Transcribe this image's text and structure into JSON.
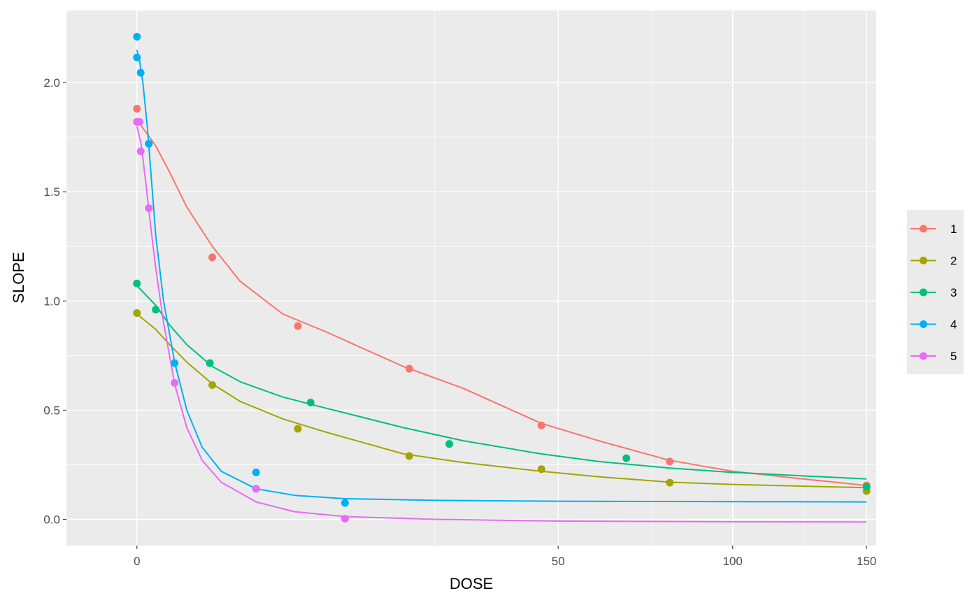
{
  "chart_data": {
    "type": "scatter",
    "title": "",
    "xlabel": "DOSE",
    "ylabel": "SLOPE",
    "x_scale": "sqrt",
    "xlim": [
      -1.4,
      154
    ],
    "ylim": [
      -0.12,
      2.33
    ],
    "x_ticks": [
      0,
      50,
      100,
      150
    ],
    "y_ticks": [
      0.0,
      0.5,
      1.0,
      1.5,
      2.0
    ],
    "y_tick_labels": [
      "0.0",
      "0.5",
      "1.0",
      "1.5",
      "2.0"
    ],
    "grid": true,
    "legend_position": "right",
    "background": "#EBEBEB",
    "series": [
      {
        "name": "1",
        "color": "#F8766D",
        "points": [
          [
            0,
            1.88
          ],
          [
            1.6,
            1.2
          ],
          [
            7.3,
            0.885
          ],
          [
            20.9,
            0.69
          ],
          [
            46.1,
            0.43
          ],
          [
            80,
            0.265
          ],
          [
            150,
            0.155
          ]
        ],
        "curve": [
          [
            0,
            1.83
          ],
          [
            0.1,
            1.71
          ],
          [
            0.3,
            1.59
          ],
          [
            0.7,
            1.43
          ],
          [
            1.6,
            1.25
          ],
          [
            3,
            1.09
          ],
          [
            6,
            0.94
          ],
          [
            10,
            0.86
          ],
          [
            20,
            0.7
          ],
          [
            30,
            0.6
          ],
          [
            46,
            0.44
          ],
          [
            60,
            0.36
          ],
          [
            80,
            0.27
          ],
          [
            100,
            0.22
          ],
          [
            125,
            0.185
          ],
          [
            150,
            0.155
          ]
        ]
      },
      {
        "name": "2",
        "color": "#A3A500",
        "points": [
          [
            0,
            0.945
          ],
          [
            1.6,
            0.615
          ],
          [
            7.3,
            0.415
          ],
          [
            20.9,
            0.29
          ],
          [
            46.1,
            0.23
          ],
          [
            80,
            0.168
          ],
          [
            150,
            0.13
          ]
        ],
        "curve": [
          [
            0,
            0.94
          ],
          [
            0.1,
            0.87
          ],
          [
            0.3,
            0.8
          ],
          [
            0.7,
            0.72
          ],
          [
            1.6,
            0.62
          ],
          [
            3,
            0.54
          ],
          [
            6,
            0.46
          ],
          [
            10,
            0.4
          ],
          [
            20,
            0.3
          ],
          [
            30,
            0.26
          ],
          [
            46,
            0.22
          ],
          [
            60,
            0.195
          ],
          [
            80,
            0.17
          ],
          [
            100,
            0.16
          ],
          [
            150,
            0.145
          ]
        ]
      },
      {
        "name": "3",
        "color": "#00BF7D",
        "points": [
          [
            0,
            1.08
          ],
          [
            0.1,
            0.96
          ],
          [
            1.5,
            0.715
          ],
          [
            8.5,
            0.535
          ],
          [
            27.5,
            0.345
          ],
          [
            67.5,
            0.28
          ],
          [
            150,
            0.15
          ]
        ],
        "curve": [
          [
            0,
            1.07
          ],
          [
            0.1,
            0.98
          ],
          [
            0.3,
            0.89
          ],
          [
            0.7,
            0.8
          ],
          [
            1.6,
            0.7
          ],
          [
            3,
            0.63
          ],
          [
            6,
            0.56
          ],
          [
            10,
            0.51
          ],
          [
            20,
            0.42
          ],
          [
            30,
            0.36
          ],
          [
            46,
            0.3
          ],
          [
            60,
            0.265
          ],
          [
            80,
            0.235
          ],
          [
            100,
            0.215
          ],
          [
            150,
            0.185
          ]
        ]
      },
      {
        "name": "4",
        "color": "#00B0F6",
        "points": [
          [
            0,
            2.21
          ],
          [
            0,
            2.115
          ],
          [
            0.004,
            2.045
          ],
          [
            0.04,
            1.72
          ],
          [
            0.4,
            0.715
          ],
          [
            4,
            0.215
          ],
          [
            12.2,
            0.075
          ]
        ],
        "curve": [
          [
            0,
            2.15
          ],
          [
            0.002,
            2.1
          ],
          [
            0.01,
            2.0
          ],
          [
            0.03,
            1.8
          ],
          [
            0.06,
            1.55
          ],
          [
            0.1,
            1.3
          ],
          [
            0.2,
            1.0
          ],
          [
            0.4,
            0.72
          ],
          [
            0.7,
            0.5
          ],
          [
            1.2,
            0.33
          ],
          [
            2,
            0.22
          ],
          [
            4,
            0.14
          ],
          [
            7,
            0.11
          ],
          [
            12,
            0.095
          ],
          [
            25,
            0.087
          ],
          [
            50,
            0.083
          ],
          [
            100,
            0.081
          ],
          [
            150,
            0.08
          ]
        ]
      },
      {
        "name": "5",
        "color": "#E76BF3",
        "points": [
          [
            0,
            1.82
          ],
          [
            0.002,
            1.82
          ],
          [
            0.004,
            1.685
          ],
          [
            0.04,
            1.425
          ],
          [
            0.4,
            0.625
          ],
          [
            4,
            0.14
          ],
          [
            12.2,
            0.003
          ]
        ],
        "curve": [
          [
            0,
            1.8
          ],
          [
            0.005,
            1.72
          ],
          [
            0.02,
            1.56
          ],
          [
            0.05,
            1.36
          ],
          [
            0.1,
            1.15
          ],
          [
            0.2,
            0.9
          ],
          [
            0.4,
            0.62
          ],
          [
            0.7,
            0.42
          ],
          [
            1.2,
            0.27
          ],
          [
            2,
            0.17
          ],
          [
            4,
            0.08
          ],
          [
            7,
            0.035
          ],
          [
            12.2,
            0.013
          ],
          [
            25,
            0.0
          ],
          [
            50,
            -0.008
          ],
          [
            100,
            -0.011
          ],
          [
            150,
            -0.012
          ]
        ]
      }
    ]
  }
}
